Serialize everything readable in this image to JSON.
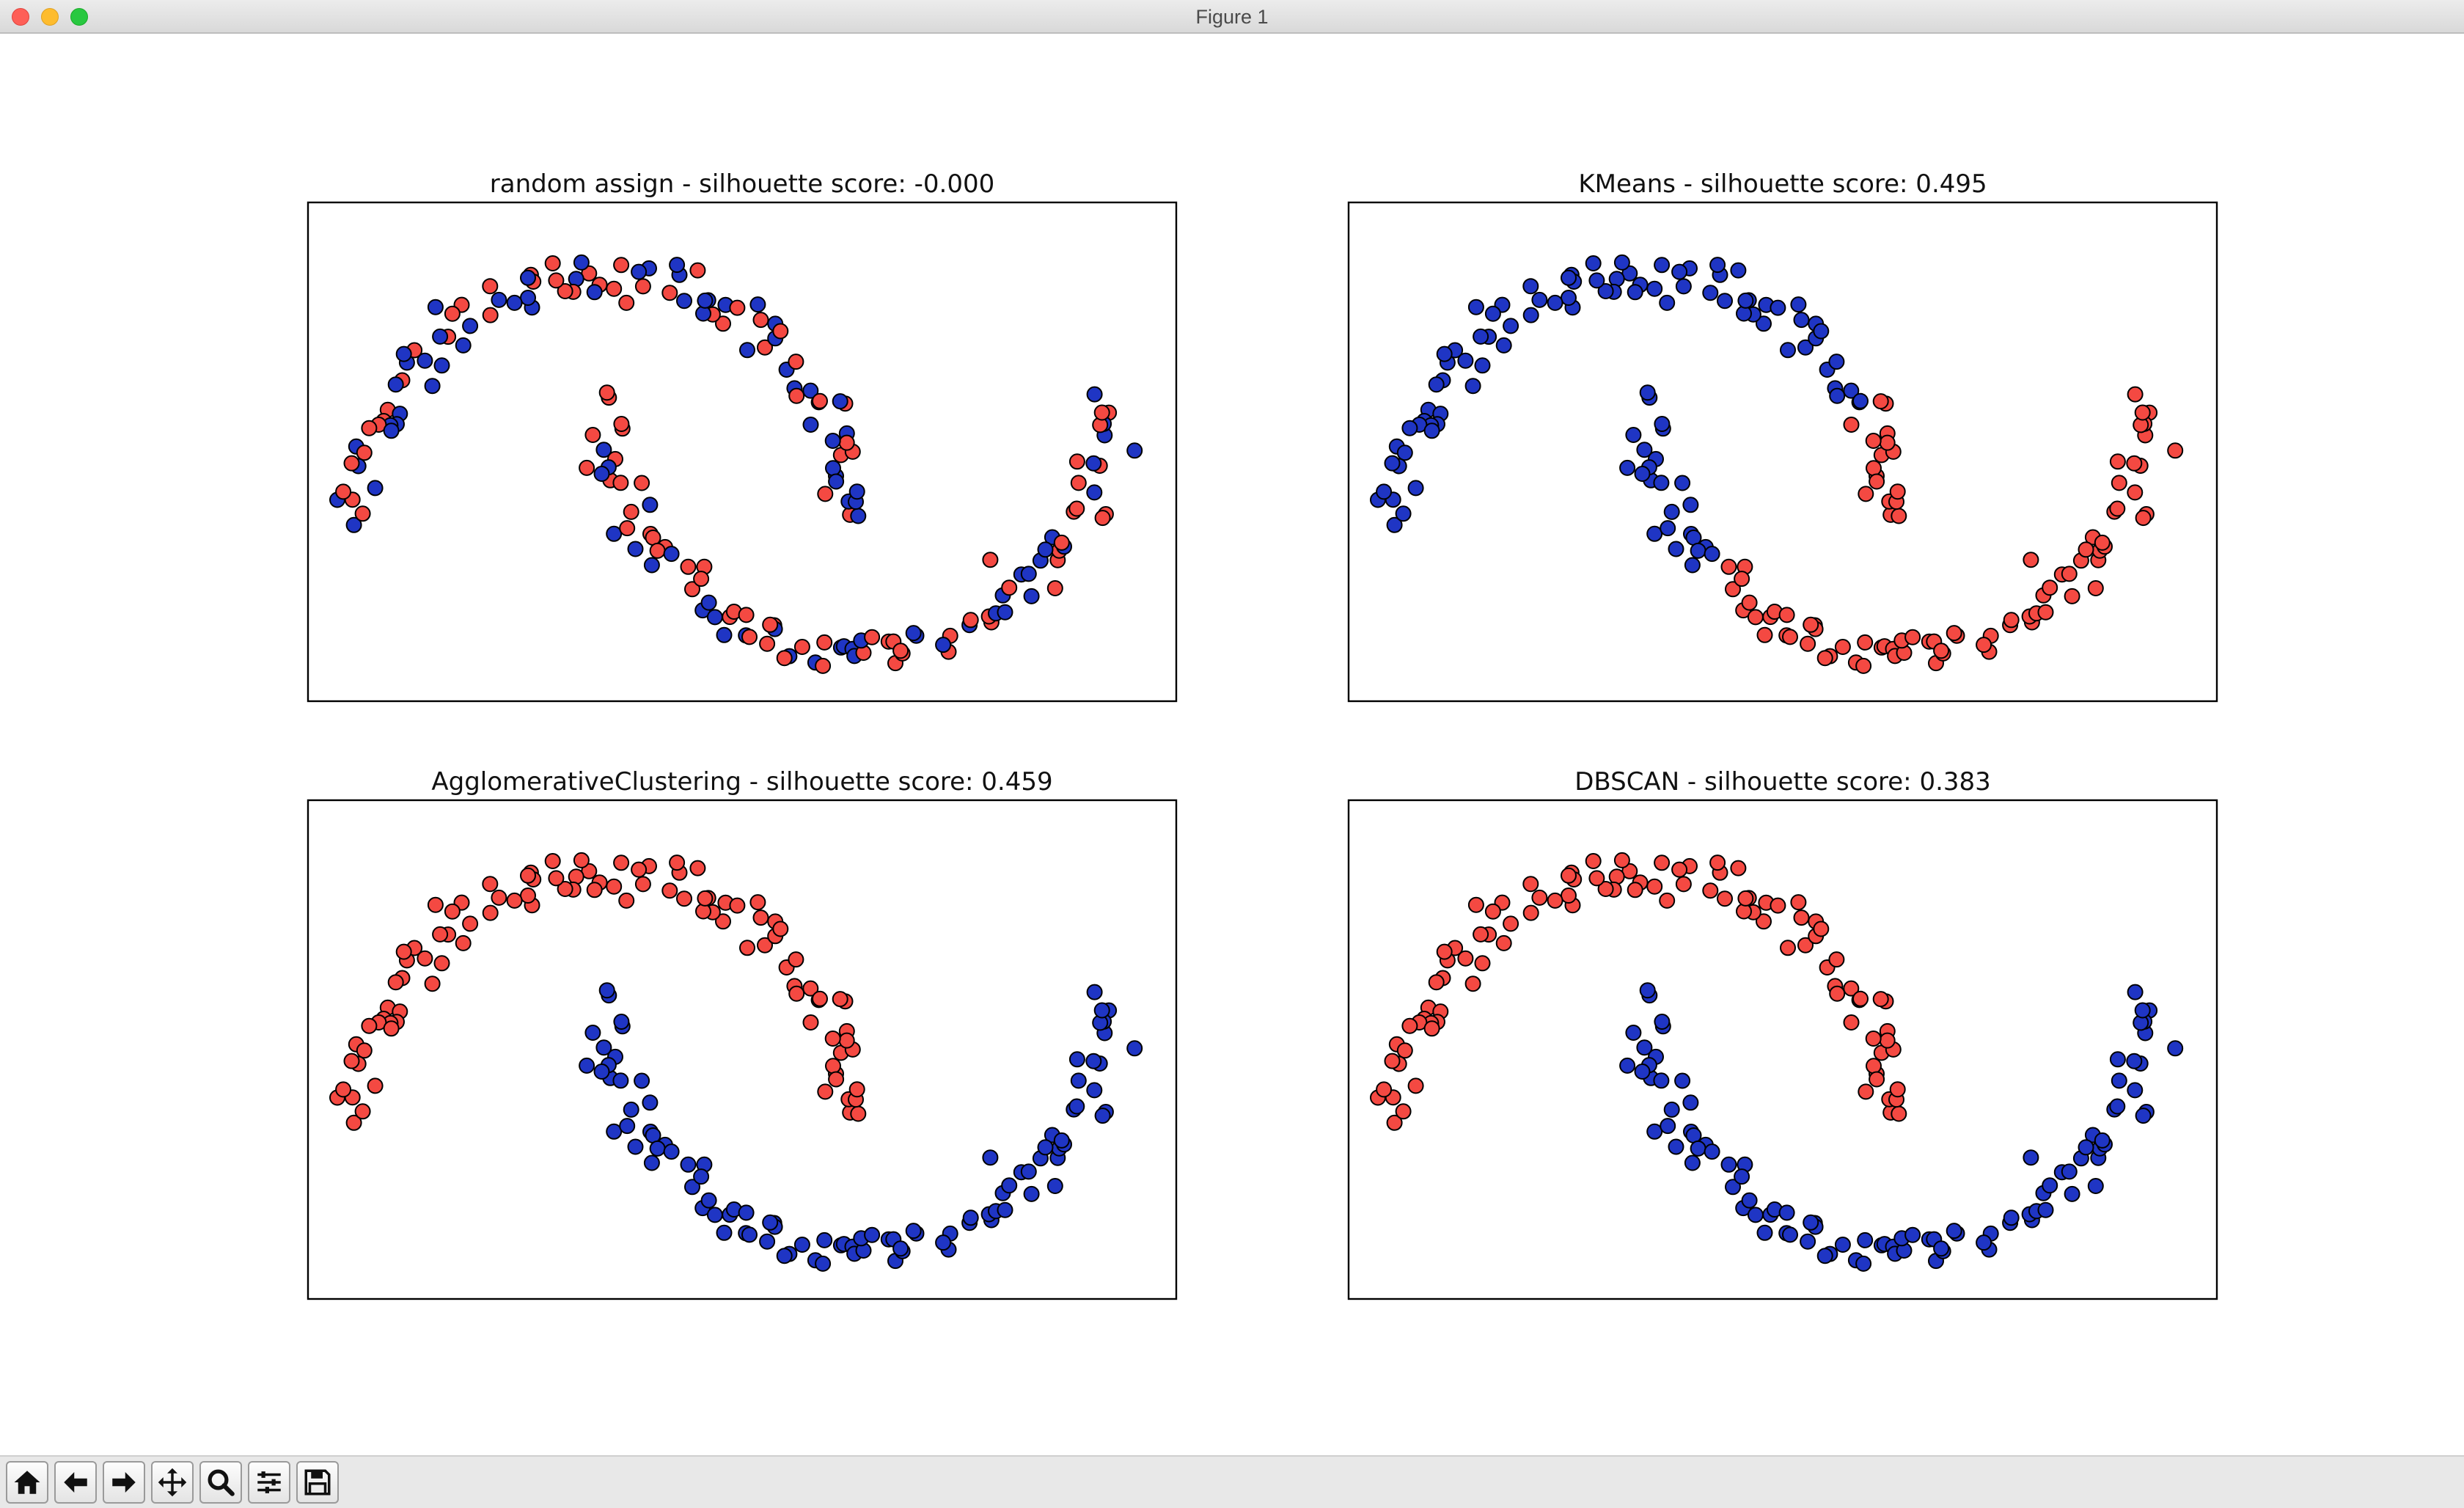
{
  "window": {
    "title": "Figure 1"
  },
  "toolbar": {
    "buttons": [
      {
        "icon": "home-icon"
      },
      {
        "icon": "back-arrow-icon"
      },
      {
        "icon": "forward-arrow-icon"
      },
      {
        "icon": "pan-icon"
      },
      {
        "icon": "zoom-icon"
      },
      {
        "icon": "configure-subplots-icon"
      },
      {
        "icon": "save-icon"
      }
    ]
  },
  "colors": {
    "cluster_0": "#1f35c4",
    "cluster_1": "#f44942",
    "edge": "#000000"
  },
  "chart_data": [
    {
      "type": "scatter",
      "title": "random assign - silhouette score: -0.000",
      "xlabel": "",
      "ylabel": "",
      "xlim": [
        -1.2,
        2.3
      ],
      "ylim": [
        -0.7,
        1.3
      ],
      "grid": false,
      "legend": "none",
      "assignment": "random"
    },
    {
      "type": "scatter",
      "title": "KMeans - silhouette score: 0.495",
      "xlabel": "",
      "ylabel": "",
      "xlim": [
        -1.2,
        2.3
      ],
      "ylim": [
        -0.7,
        1.3
      ],
      "grid": false,
      "legend": "none",
      "assignment": "kmeans"
    },
    {
      "type": "scatter",
      "title": "AgglomerativeClustering - silhouette score: 0.459",
      "xlabel": "",
      "ylabel": "",
      "xlim": [
        -1.2,
        2.3
      ],
      "ylim": [
        -0.7,
        1.3
      ],
      "grid": false,
      "legend": "none",
      "assignment": "moons"
    },
    {
      "type": "scatter",
      "title": "DBSCAN - silhouette score: 0.383",
      "xlabel": "",
      "ylabel": "",
      "xlim": [
        -1.2,
        2.3
      ],
      "ylim": [
        -0.7,
        1.3
      ],
      "grid": false,
      "legend": "none",
      "assignment": "moons"
    }
  ]
}
